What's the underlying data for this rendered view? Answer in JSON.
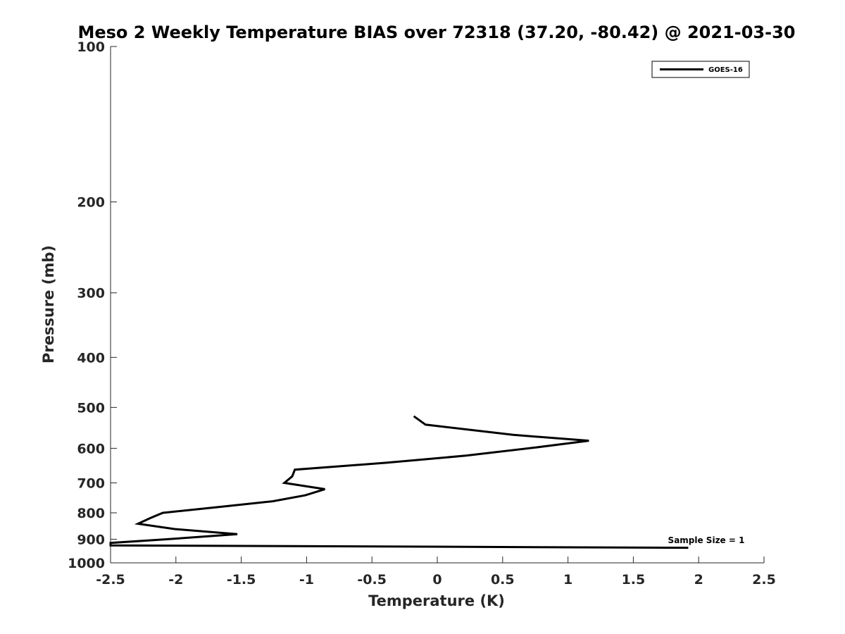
{
  "chart_data": {
    "type": "line",
    "title": "Meso 2 Weekly Temperature BIAS over 72318 (37.20, -80.42) @ 2021-03-30",
    "xlabel": "Temperature (K)",
    "ylabel": "Pressure (mb)",
    "xlim": [
      -2.5,
      2.5
    ],
    "ylim": [
      1000,
      100
    ],
    "y_scale": "log",
    "y_direction": "reversed",
    "xticks": [
      "-2.5",
      "-2",
      "-1.5",
      "-1",
      "-0.5",
      "0",
      "0.5",
      "1",
      "1.5",
      "2",
      "2.5"
    ],
    "yticks": [
      "100",
      "200",
      "300",
      "400",
      "500",
      "600",
      "700",
      "800",
      "900",
      "1000"
    ],
    "grid": false,
    "legend_position": "top-right",
    "series": [
      {
        "name": "GOES-16",
        "color": "#000000",
        "x": [
          -0.18,
          -0.09,
          0.58,
          1.16,
          0.75,
          0.22,
          -0.39,
          -1.09,
          -1.11,
          -1.17,
          -0.86,
          -1.01,
          -1.26,
          -1.68,
          -2.1,
          -2.2,
          -2.29,
          -2.01,
          -1.53,
          -2.07,
          -2.5,
          -2.5,
          1.92
        ],
        "y": [
          520,
          540,
          565,
          580,
          598,
          620,
          640,
          660,
          680,
          700,
          720,
          740,
          760,
          780,
          800,
          820,
          840,
          860,
          880,
          900,
          915,
          925,
          935
        ]
      }
    ],
    "annotation": "Sample Size = 1"
  }
}
